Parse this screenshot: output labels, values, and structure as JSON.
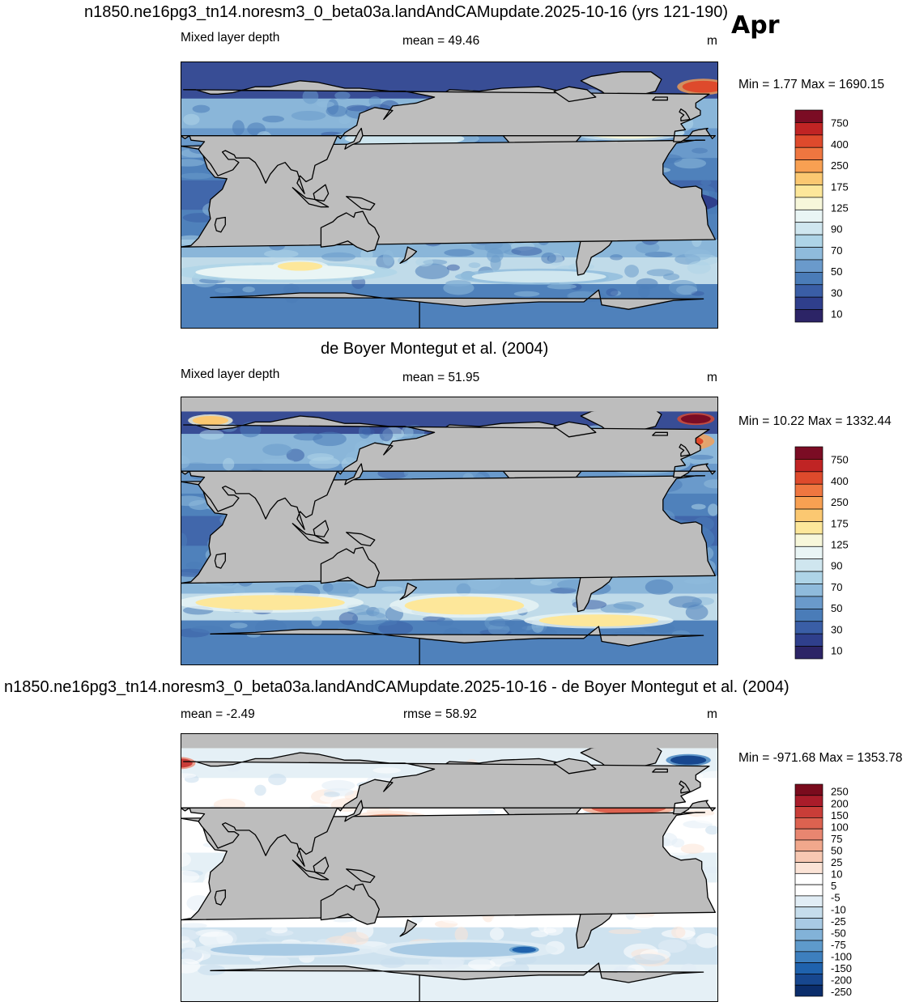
{
  "header": {
    "title": "n1850.ne16pg3_tn14.noresm3_0_beta03a.landAndCAMupdate.2025-10-16 (yrs 121-190)",
    "month": "Apr"
  },
  "colors": {
    "land": "#bdbdbd",
    "seq_scale": [
      "#2c2466",
      "#2f3f8c",
      "#3a5ea6",
      "#4a7cb8",
      "#6a9acb",
      "#8fbbdc",
      "#aed4e7",
      "#cfe6ef",
      "#e9f5f5",
      "#f7f7da",
      "#fde79a",
      "#fbc871",
      "#f8a052",
      "#ef7640",
      "#de4a2c",
      "#c02424",
      "#7b0c24"
    ],
    "diff_scale": [
      "#0b2d6b",
      "#17478f",
      "#1f62ad",
      "#3d7fbe",
      "#5e9acb",
      "#82b2d8",
      "#a8cae4",
      "#c6ddec",
      "#e1edf5",
      "#ffffff",
      "#ffffff",
      "#fbe3d6",
      "#f7c8b2",
      "#f1a88c",
      "#e88670",
      "#dc6250",
      "#c93d38",
      "#a91c2a",
      "#7a0b1d"
    ]
  },
  "panels": [
    {
      "id": "model",
      "section_title": "",
      "left_label": "Mixed layer depth",
      "center_label": "mean =  49.46",
      "right_label": "m",
      "minmax": "Min =   1.77 Max = 1690.15",
      "colorbar_ticks": [
        "750",
        "400",
        "250",
        "175",
        "125",
        "90",
        "70",
        "50",
        "30",
        "10"
      ],
      "scale": "seq",
      "ocean_base_level": 4,
      "features": [
        {
          "lon": -35,
          "lat": 58,
          "rx": 28,
          "ry": 7,
          "level": 16
        },
        {
          "lon": -18,
          "lat": 55,
          "rx": 14,
          "ry": 5,
          "level": 14
        },
        {
          "lon": 10,
          "lat": 73,
          "rx": 14,
          "ry": 4,
          "level": 14
        },
        {
          "lon": -40,
          "lat": 42,
          "rx": 30,
          "ry": 4,
          "level": 9
        },
        {
          "lon": 170,
          "lat": 38,
          "rx": 40,
          "ry": 5,
          "level": 7
        },
        {
          "lon": 90,
          "lat": -52,
          "rx": 60,
          "ry": 5,
          "level": 8
        },
        {
          "lon": -100,
          "lat": -55,
          "rx": 45,
          "ry": 4,
          "level": 7
        },
        {
          "lon": 100,
          "lat": -48,
          "rx": 15,
          "ry": 3,
          "level": 10
        },
        {
          "lon": -20,
          "lat": -5,
          "rx": 40,
          "ry": 8,
          "level": 1
        },
        {
          "lon": -120,
          "lat": -5,
          "rx": 50,
          "ry": 6,
          "level": 2
        },
        {
          "lon": 80,
          "lat": -10,
          "rx": 30,
          "ry": 8,
          "level": 2
        }
      ]
    },
    {
      "id": "obs",
      "section_title": "de Boyer Montegut et al. (2004)",
      "left_label": "Mixed layer depth",
      "center_label": "mean =  51.95",
      "right_label": "m",
      "minmax": "Min =  10.22 Max = 1332.44",
      "colorbar_ticks": [
        "750",
        "400",
        "250",
        "175",
        "125",
        "90",
        "70",
        "50",
        "30",
        "10"
      ],
      "scale": "seq",
      "ocean_base_level": 4,
      "features": [
        {
          "lon": -20,
          "lat": 60,
          "rx": 30,
          "ry": 6,
          "level": 14
        },
        {
          "lon": 5,
          "lat": 75,
          "rx": 10,
          "ry": 3,
          "level": 16
        },
        {
          "lon": 40,
          "lat": 74,
          "rx": 12,
          "ry": 3,
          "level": 11
        },
        {
          "lon": -30,
          "lat": 45,
          "rx": 25,
          "ry": 5,
          "level": 7
        },
        {
          "lon": -150,
          "lat": -50,
          "rx": 40,
          "ry": 6,
          "level": 10
        },
        {
          "lon": 80,
          "lat": -48,
          "rx": 50,
          "ry": 5,
          "level": 10
        },
        {
          "lon": -60,
          "lat": -60,
          "rx": 40,
          "ry": 4,
          "level": 10
        },
        {
          "lon": -20,
          "lat": -5,
          "rx": 30,
          "ry": 10,
          "level": 1
        },
        {
          "lon": -110,
          "lat": -15,
          "rx": 40,
          "ry": 8,
          "level": 2
        },
        {
          "lon": 90,
          "lat": -5,
          "rx": 30,
          "ry": 8,
          "level": 2
        }
      ]
    },
    {
      "id": "diff",
      "section_title": "n1850.ne16pg3_tn14.noresm3_0_beta03a.landAndCAMupdate.2025-10-16 - de Boyer Montegut et al. (2004)",
      "left_label": "mean =  -2.49",
      "center_label": "rmse =  58.92",
      "right_label": "m",
      "minmax": "Min = -971.68 Max = 1353.78",
      "colorbar_ticks": [
        "250",
        "200",
        "150",
        "100",
        "75",
        "50",
        "25",
        "10",
        "5",
        "-5",
        "-10",
        "-25",
        "-50",
        "-75",
        "-100",
        "-150",
        "-200",
        "-250"
      ],
      "scale": "diff",
      "ocean_base_level": 9,
      "features": [
        {
          "lon": -35,
          "lat": 58,
          "rx": 22,
          "ry": 6,
          "level": 18
        },
        {
          "lon": 0,
          "lat": 72,
          "rx": 12,
          "ry": 3,
          "level": 1
        },
        {
          "lon": 20,
          "lat": 70,
          "rx": 8,
          "ry": 3,
          "level": 16
        },
        {
          "lon": -40,
          "lat": 40,
          "rx": 25,
          "ry": 4,
          "level": 15
        },
        {
          "lon": 160,
          "lat": 30,
          "rx": 25,
          "ry": 6,
          "level": 13
        },
        {
          "lon": -140,
          "lat": 15,
          "rx": 30,
          "ry": 4,
          "level": 12
        },
        {
          "lon": 100,
          "lat": -25,
          "rx": 40,
          "ry": 4,
          "level": 12
        },
        {
          "lon": -150,
          "lat": -55,
          "rx": 50,
          "ry": 5,
          "level": 6
        },
        {
          "lon": -110,
          "lat": -55,
          "rx": 8,
          "ry": 2,
          "level": 2
        },
        {
          "lon": 90,
          "lat": -55,
          "rx": 50,
          "ry": 4,
          "level": 6
        },
        {
          "lon": -20,
          "lat": -20,
          "rx": 20,
          "ry": 6,
          "level": 7
        },
        {
          "lon": 60,
          "lat": -10,
          "rx": 20,
          "ry": 5,
          "level": 7
        }
      ]
    }
  ]
}
